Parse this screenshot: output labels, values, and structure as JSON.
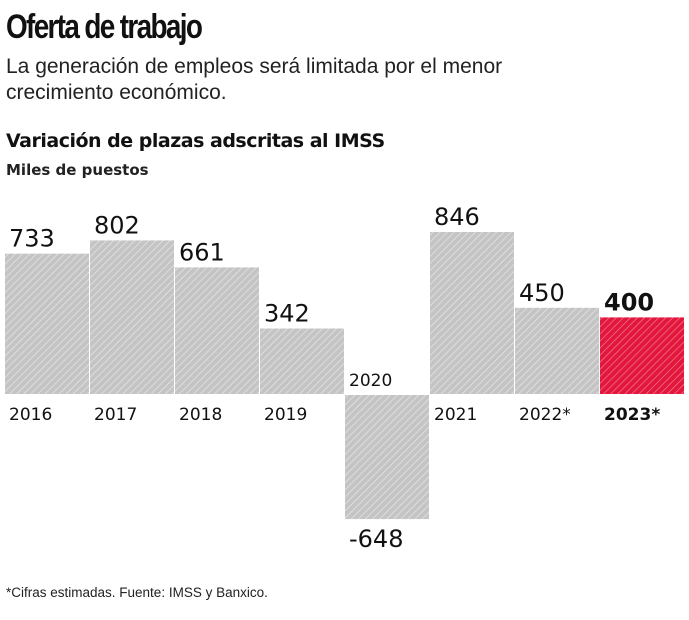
{
  "header": {
    "title": "Oferta de trabajo",
    "subtitle": "La generación de empleos será limitada por el menor crecimiento económico."
  },
  "footnote": "*Cifras estimadas. Fuente: IMSS y Banxico.",
  "chart_data": {
    "type": "bar",
    "title": "Variación de plazas adscritas al IMSS",
    "ylabel": "Miles de puestos",
    "categories": [
      "2016",
      "2017",
      "2018",
      "2019",
      "2020",
      "2021",
      "2022*",
      "2023*"
    ],
    "values": [
      733,
      802,
      661,
      342,
      -648,
      846,
      450,
      400
    ],
    "highlight_index": 7,
    "colors": {
      "bar": "#c4c4c4",
      "highlight": "#e3173e"
    },
    "grid": false
  }
}
